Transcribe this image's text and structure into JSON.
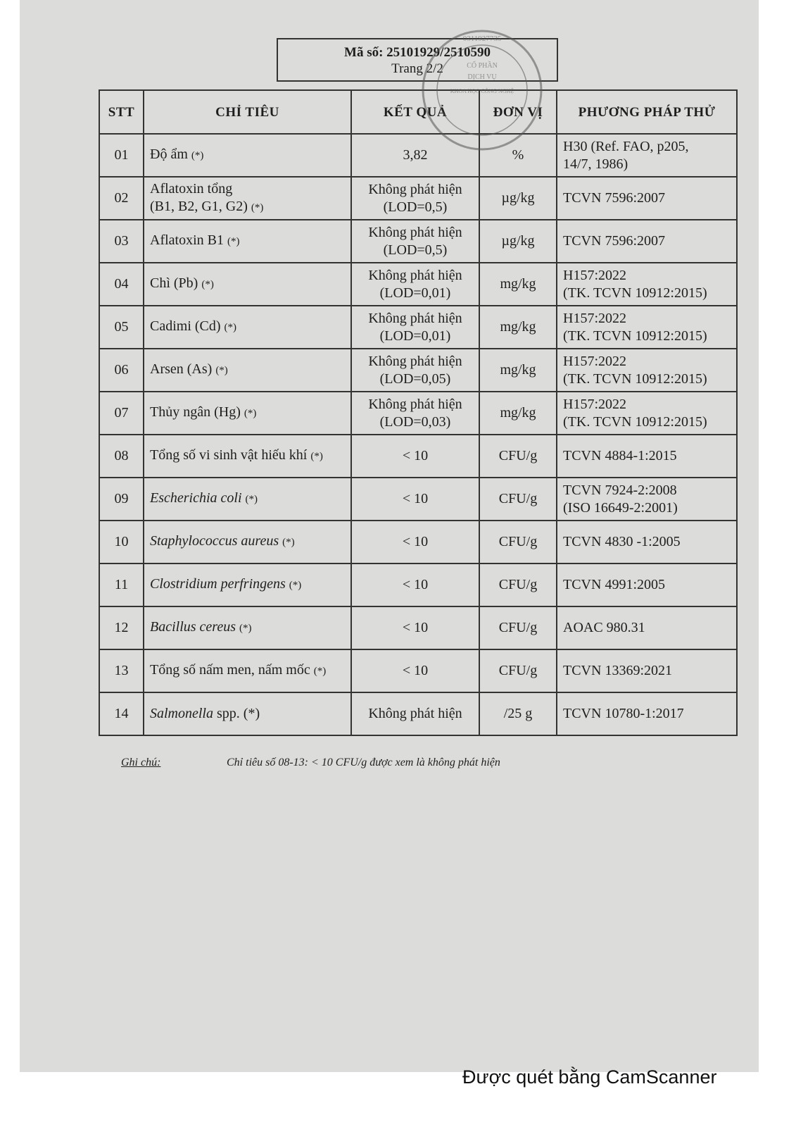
{
  "header": {
    "code": "Mã số: 25101929/2510590",
    "page": "Trang 2/2"
  },
  "stamp": {
    "text": "0311927735 C.T.C.P CỔ PHẦN DỊCH VỤ KHOA HỌC CÔNG NGHỆ CHẮN NHƯ ĐỊNH - P HỒ CHÍ MINH",
    "color": "#6b6b6b"
  },
  "table": {
    "headers": [
      "STT",
      "CHỈ TIÊU",
      "KẾT QUẢ",
      "ĐƠN VỊ",
      "PHƯƠNG PHÁP THỬ"
    ],
    "rows": [
      {
        "stt": "01",
        "name": "Độ ẩm",
        "name2": "",
        "italic": false,
        "suffix": "(*)",
        "result": "3,82",
        "result2": "",
        "unit": "%",
        "method": "H30 (Ref. FAO, p205,",
        "method2": "14/7, 1986)"
      },
      {
        "stt": "02",
        "name": "Aflatoxin tổng",
        "name2": "(B1, B2, G1, G2)",
        "italic": false,
        "suffix": "(*)",
        "result": "Không phát hiện",
        "result2": "(LOD=0,5)",
        "unit": "µg/kg",
        "method": "TCVN 7596:2007",
        "method2": ""
      },
      {
        "stt": "03",
        "name": "Aflatoxin B1",
        "name2": "",
        "italic": false,
        "suffix": "(*)",
        "result": "Không phát hiện",
        "result2": "(LOD=0,5)",
        "unit": "µg/kg",
        "method": "TCVN 7596:2007",
        "method2": ""
      },
      {
        "stt": "04",
        "name": "Chì (Pb)",
        "name2": "",
        "italic": false,
        "suffix": "(*)",
        "result": "Không phát hiện",
        "result2": "(LOD=0,01)",
        "unit": "mg/kg",
        "method": "H157:2022",
        "method2": "(TK. TCVN 10912:2015)"
      },
      {
        "stt": "05",
        "name": "Cadimi (Cd)",
        "name2": "",
        "italic": false,
        "suffix": "(*)",
        "result": "Không phát hiện",
        "result2": "(LOD=0,01)",
        "unit": "mg/kg",
        "method": "H157:2022",
        "method2": "(TK. TCVN 10912:2015)"
      },
      {
        "stt": "06",
        "name": "Arsen (As)",
        "name2": "",
        "italic": false,
        "suffix": "(*)",
        "result": "Không phát hiện",
        "result2": "(LOD=0,05)",
        "unit": "mg/kg",
        "method": "H157:2022",
        "method2": "(TK. TCVN 10912:2015)"
      },
      {
        "stt": "07",
        "name": "Thủy ngân (Hg)",
        "name2": "",
        "italic": false,
        "suffix": "(*)",
        "result": "Không phát hiện",
        "result2": "(LOD=0,03)",
        "unit": "mg/kg",
        "method": "H157:2022",
        "method2": "(TK. TCVN 10912:2015)"
      },
      {
        "stt": "08",
        "name": "Tổng số vi sinh vật hiếu khí",
        "name2": "",
        "italic": false,
        "suffix": "(*)",
        "result": "< 10",
        "result2": "",
        "unit": "CFU/g",
        "method": "TCVN 4884-1:2015",
        "method2": ""
      },
      {
        "stt": "09",
        "name": "Escherichia coli",
        "name2": "",
        "italic": true,
        "suffix": "(*)",
        "result": "< 10",
        "result2": "",
        "unit": "CFU/g",
        "method": "TCVN 7924-2:2008",
        "method2": "(ISO 16649-2:2001)"
      },
      {
        "stt": "10",
        "name": "Staphylococcus aureus",
        "name2": "",
        "italic": true,
        "suffix": "(*)",
        "result": "< 10",
        "result2": "",
        "unit": "CFU/g",
        "method": "TCVN 4830 -1:2005",
        "method2": ""
      },
      {
        "stt": "11",
        "name": "Clostridium perfringens",
        "name2": "",
        "italic": true,
        "suffix": "(*)",
        "result": "< 10",
        "result2": "",
        "unit": "CFU/g",
        "method": "TCVN 4991:2005",
        "method2": ""
      },
      {
        "stt": "12",
        "name": "Bacillus cereus",
        "name2": "",
        "italic": true,
        "suffix": "(*)",
        "result": "< 10",
        "result2": "",
        "unit": "CFU/g",
        "method": "AOAC 980.31",
        "method2": ""
      },
      {
        "stt": "13",
        "name": "Tổng số nấm men, nấm mốc",
        "name2": "",
        "italic": false,
        "suffix": "(*)",
        "result": "< 10",
        "result2": "",
        "unit": "CFU/g",
        "method": "TCVN 13369:2021",
        "method2": ""
      },
      {
        "stt": "14",
        "name": "Salmonella",
        "name2": "",
        "italic": true,
        "suffix": "spp. (*)",
        "result": "Không phát hiện",
        "result2": "",
        "unit": "/25 g",
        "method": "TCVN 10780-1:2017",
        "method2": ""
      }
    ]
  },
  "note": {
    "label": "Ghi chú:",
    "text": "Chỉ tiêu số 08-13: < 10 CFU/g được xem là không phát hiện"
  },
  "watermark": "Được quét bằng CamScanner"
}
